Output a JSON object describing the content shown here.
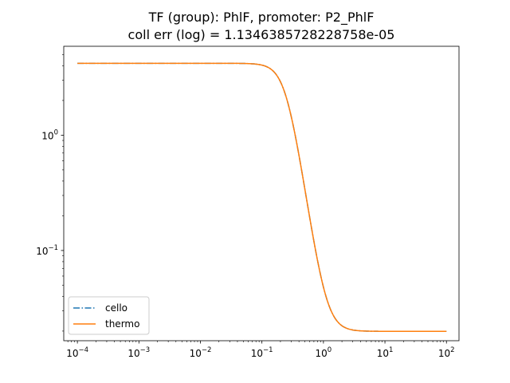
{
  "chart_data": {
    "type": "line",
    "title_line1": "TF (group): PhlF, promoter: P2_PhlF",
    "title_line2": "coll err (log) = 1.1346385728228758e-05",
    "xlabel": "",
    "ylabel": "",
    "xscale": "log",
    "yscale": "log",
    "xlim": [
      6e-05,
      160
    ],
    "ylim": [
      0.0165,
      5.9
    ],
    "x_ticks": [
      {
        "value": 0.0001,
        "base": "10",
        "exp": "−4"
      },
      {
        "value": 0.001,
        "base": "10",
        "exp": "−3"
      },
      {
        "value": 0.01,
        "base": "10",
        "exp": "−2"
      },
      {
        "value": 0.1,
        "base": "10",
        "exp": "−1"
      },
      {
        "value": 1,
        "base": "10",
        "exp": "0"
      },
      {
        "value": 10,
        "base": "10",
        "exp": "1"
      },
      {
        "value": 100,
        "base": "10",
        "exp": "2"
      }
    ],
    "y_ticks": [
      {
        "value": 0.1,
        "base": "10",
        "exp": "−1"
      },
      {
        "value": 1,
        "base": "10",
        "exp": "0"
      }
    ],
    "hill_model": {
      "ymin": 0.0199,
      "ymax": 4.2,
      "K": 0.25,
      "n": 3.6,
      "x_range": [
        0.0001,
        100
      ]
    },
    "series": [
      {
        "name": "cello",
        "color": "#1f77b4",
        "style": "dashdot"
      },
      {
        "name": "thermo",
        "color": "#ff7f0e",
        "style": "solid"
      }
    ],
    "legend": {
      "placement": "lower-left",
      "entries": [
        "cello",
        "thermo"
      ]
    },
    "grid": false
  }
}
